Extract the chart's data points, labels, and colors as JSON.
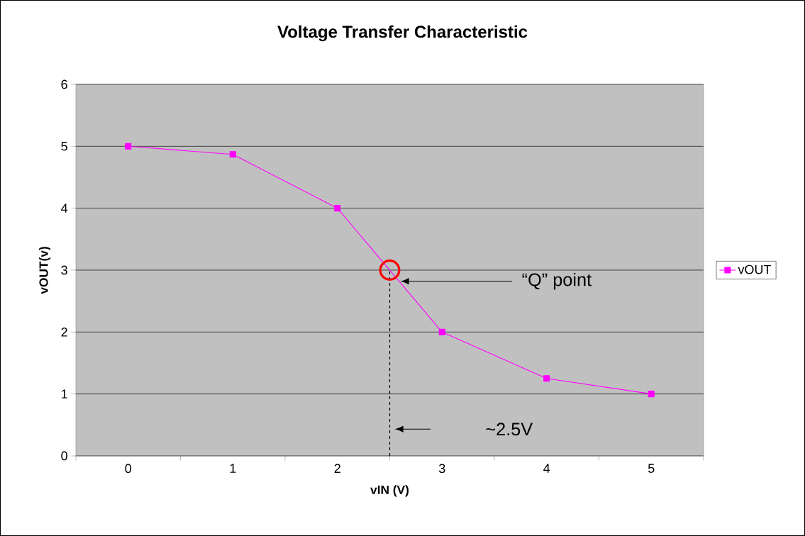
{
  "chart_data": {
    "type": "line",
    "title": "Voltage Transfer Characteristic",
    "xlabel": "vIN (V)",
    "ylabel": "vOUT(v)",
    "x": [
      0,
      1,
      2,
      3,
      4,
      5
    ],
    "series": [
      {
        "name": "vOUT",
        "color": "#ff00ff",
        "values": [
          5,
          4.87,
          4.0,
          2.0,
          1.25,
          1.0
        ]
      }
    ],
    "xlim": [
      -0.5,
      5.5
    ],
    "xticks": [
      {
        "value": -0.5,
        "label": null
      },
      0,
      {
        "value": 0.5,
        "label": null
      },
      1,
      {
        "value": 1.5,
        "label": null
      },
      2,
      {
        "value": 2.5,
        "label": null
      },
      3,
      {
        "value": 3.5,
        "label": null
      },
      4,
      {
        "value": 4.5,
        "label": null
      },
      5,
      {
        "value": 5.5,
        "label": null
      }
    ],
    "ylim": [
      0,
      6
    ],
    "yticks": [
      0,
      1,
      2,
      3,
      4,
      5,
      6
    ],
    "annotations": [
      "“Q” point"
    ],
    "ref_lines": [
      {
        "axis": "x",
        "value": 2.5,
        "label": "~2.5V",
        "color": "#000000",
        "line_style": "dashed"
      }
    ],
    "grid": "y",
    "legend": "right",
    "marker": "square",
    "line_style": "solid"
  }
}
